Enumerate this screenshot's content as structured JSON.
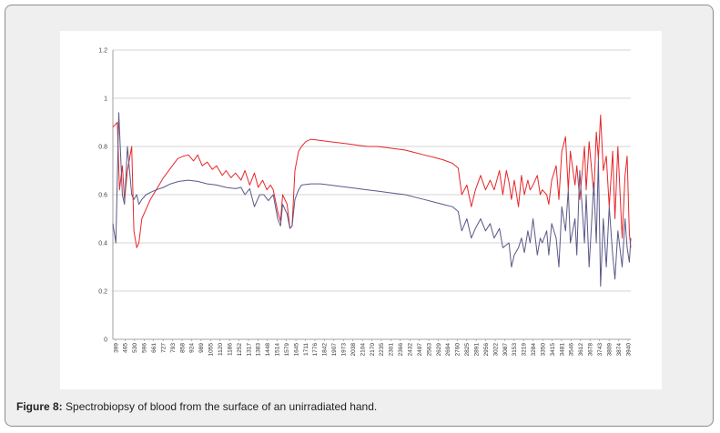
{
  "caption": {
    "label": "Figure 8:",
    "text": "Spectrobiopsy of blood from the surface of an unirradiated hand."
  },
  "chart_data": {
    "type": "line",
    "title": "",
    "xlabel": "",
    "ylabel": "",
    "ylim": [
      0,
      1.2
    ],
    "yticks": [
      0,
      0.2,
      0.4,
      0.6,
      0.8,
      1,
      1.2
    ],
    "ytick_labels": [
      "0",
      "0.2",
      "0.4",
      "0.6",
      "0.8",
      "1",
      "1.2"
    ],
    "xlim": [
      399,
      4000
    ],
    "xtick_labels": [
      "399",
      "465",
      "530",
      "596",
      "661",
      "727",
      "793",
      "858",
      "924",
      "989",
      "1055",
      "1120",
      "1186",
      "1252",
      "1317",
      "1383",
      "1448",
      "1514",
      "1579",
      "1645",
      "1711",
      "1776",
      "1842",
      "1907",
      "1973",
      "2038",
      "2104",
      "2170",
      "2235",
      "2301",
      "2366",
      "2432",
      "2497",
      "2563",
      "2629",
      "2694",
      "2760",
      "2825",
      "2891",
      "2956",
      "3022",
      "3087",
      "3153",
      "3219",
      "3284",
      "3350",
      "3415",
      "3481",
      "3546",
      "3612",
      "3678",
      "3743",
      "3809",
      "3874",
      "3940"
    ],
    "grid": true,
    "legend": "none",
    "series": [
      {
        "color": "#e8262a",
        "x": [
          399,
          430,
          445,
          465,
          480,
          500,
          530,
          545,
          565,
          580,
          600,
          630,
          660,
          700,
          750,
          800,
          850,
          890,
          924,
          960,
          989,
          1020,
          1055,
          1090,
          1120,
          1160,
          1186,
          1220,
          1252,
          1290,
          1317,
          1350,
          1383,
          1410,
          1440,
          1470,
          1495,
          1514,
          1545,
          1565,
          1579,
          1610,
          1630,
          1645,
          1665,
          1690,
          1711,
          1740,
          1776,
          1842,
          1907,
          1973,
          2038,
          2104,
          2170,
          2235,
          2301,
          2366,
          2432,
          2497,
          2563,
          2629,
          2694,
          2760,
          2800,
          2825,
          2860,
          2891,
          2920,
          2956,
          2990,
          3022,
          3050,
          3087,
          3110,
          3135,
          3153,
          3170,
          3190,
          3219,
          3240,
          3260,
          3284,
          3300,
          3320,
          3350,
          3370,
          3385,
          3415,
          3430,
          3450,
          3481,
          3500,
          3520,
          3546,
          3565,
          3580,
          3612,
          3625,
          3645,
          3678,
          3690,
          3710,
          3743,
          3760,
          3775,
          3790,
          3809,
          3830,
          3850,
          3874,
          3890,
          3910,
          3940,
          3960,
          3975,
          3990,
          4000
        ],
        "y": [
          0.88,
          0.9,
          0.62,
          0.72,
          0.58,
          0.7,
          0.8,
          0.45,
          0.38,
          0.4,
          0.5,
          0.54,
          0.58,
          0.62,
          0.67,
          0.71,
          0.75,
          0.76,
          0.765,
          0.74,
          0.765,
          0.72,
          0.735,
          0.705,
          0.72,
          0.68,
          0.7,
          0.67,
          0.69,
          0.66,
          0.7,
          0.64,
          0.69,
          0.63,
          0.66,
          0.62,
          0.64,
          0.62,
          0.53,
          0.49,
          0.6,
          0.56,
          0.46,
          0.47,
          0.7,
          0.78,
          0.8,
          0.82,
          0.83,
          0.825,
          0.82,
          0.815,
          0.81,
          0.805,
          0.8,
          0.8,
          0.795,
          0.79,
          0.785,
          0.775,
          0.765,
          0.755,
          0.745,
          0.73,
          0.71,
          0.6,
          0.64,
          0.55,
          0.62,
          0.68,
          0.62,
          0.66,
          0.62,
          0.7,
          0.6,
          0.7,
          0.65,
          0.58,
          0.66,
          0.55,
          0.68,
          0.6,
          0.66,
          0.62,
          0.64,
          0.68,
          0.6,
          0.62,
          0.6,
          0.56,
          0.66,
          0.72,
          0.58,
          0.78,
          0.84,
          0.62,
          0.78,
          0.64,
          0.72,
          0.58,
          0.8,
          0.62,
          0.82,
          0.6,
          0.86,
          0.75,
          0.93,
          0.7,
          0.76,
          0.55,
          0.78,
          0.5,
          0.8,
          0.42,
          0.68,
          0.76,
          0.44,
          0.38
        ]
      },
      {
        "color": "#5a5888",
        "x": [
          399,
          420,
          440,
          465,
          480,
          500,
          530,
          545,
          565,
          580,
          600,
          630,
          661,
          700,
          750,
          800,
          858,
          924,
          989,
          1055,
          1120,
          1186,
          1252,
          1290,
          1317,
          1350,
          1383,
          1420,
          1448,
          1480,
          1514,
          1545,
          1565,
          1579,
          1610,
          1630,
          1645,
          1665,
          1690,
          1711,
          1776,
          1842,
          1907,
          1973,
          2038,
          2104,
          2170,
          2235,
          2301,
          2366,
          2432,
          2497,
          2563,
          2629,
          2694,
          2760,
          2800,
          2825,
          2860,
          2891,
          2920,
          2956,
          2990,
          3022,
          3050,
          3087,
          3110,
          3153,
          3170,
          3190,
          3219,
          3240,
          3260,
          3284,
          3300,
          3320,
          3350,
          3370,
          3385,
          3415,
          3430,
          3450,
          3481,
          3500,
          3520,
          3546,
          3565,
          3580,
          3612,
          3625,
          3645,
          3678,
          3690,
          3710,
          3743,
          3760,
          3775,
          3790,
          3809,
          3830,
          3850,
          3874,
          3890,
          3910,
          3940,
          3960,
          3975,
          3990,
          4000
        ],
        "y": [
          0.48,
          0.4,
          0.94,
          0.6,
          0.56,
          0.8,
          0.6,
          0.58,
          0.6,
          0.56,
          0.58,
          0.6,
          0.61,
          0.62,
          0.63,
          0.645,
          0.655,
          0.66,
          0.655,
          0.645,
          0.64,
          0.63,
          0.625,
          0.63,
          0.6,
          0.625,
          0.55,
          0.6,
          0.6,
          0.575,
          0.6,
          0.5,
          0.47,
          0.56,
          0.52,
          0.46,
          0.47,
          0.58,
          0.62,
          0.64,
          0.645,
          0.645,
          0.64,
          0.635,
          0.63,
          0.625,
          0.62,
          0.615,
          0.61,
          0.605,
          0.6,
          0.59,
          0.58,
          0.57,
          0.56,
          0.55,
          0.53,
          0.45,
          0.5,
          0.42,
          0.46,
          0.5,
          0.45,
          0.48,
          0.42,
          0.46,
          0.38,
          0.4,
          0.3,
          0.35,
          0.38,
          0.42,
          0.36,
          0.45,
          0.4,
          0.5,
          0.35,
          0.42,
          0.4,
          0.45,
          0.35,
          0.48,
          0.42,
          0.3,
          0.55,
          0.45,
          0.62,
          0.4,
          0.5,
          0.35,
          0.7,
          0.4,
          0.6,
          0.3,
          0.65,
          0.4,
          0.75,
          0.22,
          0.5,
          0.3,
          0.55,
          0.35,
          0.25,
          0.45,
          0.3,
          0.5,
          0.38,
          0.32,
          0.42
        ]
      }
    ]
  }
}
